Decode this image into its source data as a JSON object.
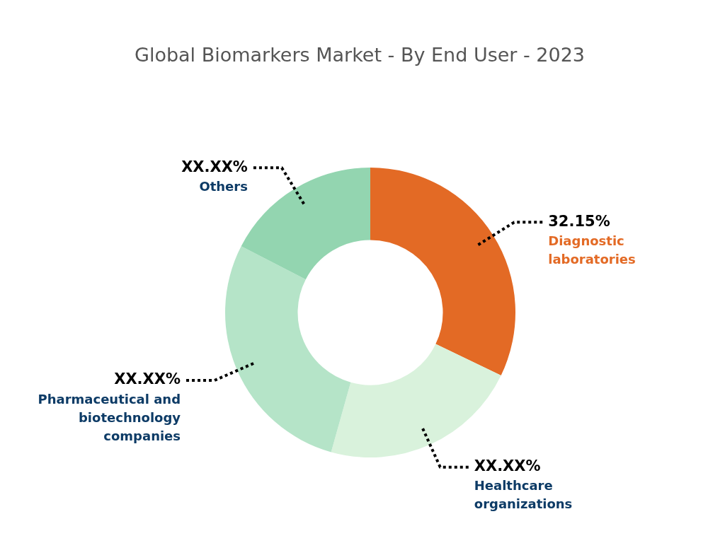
{
  "chart_data": {
    "type": "donut",
    "title": "Global Biomarkers Market - By End User - 2023",
    "categories": [
      "Diagnostic laboratories",
      "Healthcare organizations",
      "Pharmaceutical and biotechnology companies",
      "Others"
    ],
    "values": [
      32.15,
      22.2,
      28.2,
      17.45
    ],
    "value_labels": [
      "32.15%",
      "XX.XX%",
      "XX.XX%",
      "XX.XX%"
    ],
    "colors": [
      "#e36a25",
      "#d9f2dc",
      "#b5e4c8",
      "#93d5b0"
    ],
    "legend": false
  }
}
